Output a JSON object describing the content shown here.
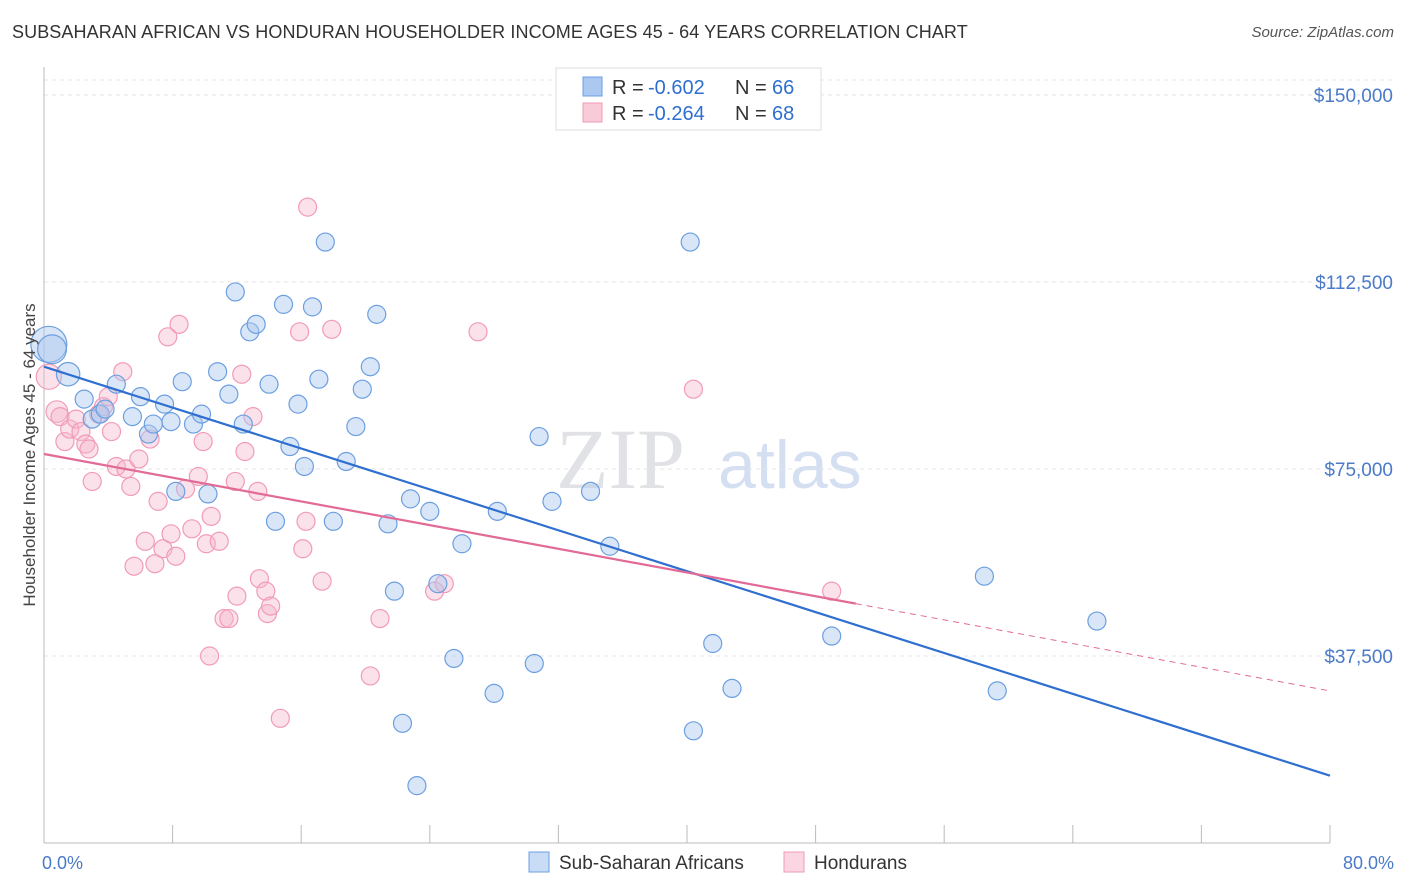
{
  "title": "SUBSAHARAN AFRICAN VS HONDURAN HOUSEHOLDER INCOME AGES 45 - 64 YEARS CORRELATION CHART",
  "source": "Source: ZipAtlas.com",
  "watermark": {
    "zip": "ZIP",
    "atlas": "atlas"
  },
  "legend_top": [
    {
      "r_label": "R =",
      "r_value": "-0.602",
      "n_label": "N =",
      "n_value": "66",
      "color": "#aac8f0"
    },
    {
      "r_label": "R =",
      "r_value": "-0.264",
      "n_label": "N =",
      "n_value": "68",
      "color": "#f6b6cb"
    }
  ],
  "chart_data": {
    "type": "scatter",
    "xlabel": "",
    "ylabel": "Householder Income Ages 45 - 64 years",
    "xlim": [
      0,
      80
    ],
    "ylim": [
      0,
      155000
    ],
    "x_tick_labels": [
      "0.0%",
      "80.0%"
    ],
    "y_ticks": [
      37500,
      75000,
      112500,
      150000
    ],
    "y_tick_labels": [
      "$37,500",
      "$75,000",
      "$112,500",
      "$150,000"
    ],
    "grid": true,
    "legend_position": "bottom",
    "series": [
      {
        "name": "Sub-Saharan Africans",
        "color": "#6c9fe0",
        "line_color": "#2f6fcf",
        "trend": {
          "x": [
            0,
            80
          ],
          "y": [
            95500,
            13500
          ]
        },
        "points": [
          {
            "x": 0.3,
            "y": 100000,
            "s": 2
          },
          {
            "x": 0.5,
            "y": 99000,
            "s": 1.6
          },
          {
            "x": 1.5,
            "y": 94000,
            "s": 1.3
          },
          {
            "x": 2.5,
            "y": 89000,
            "s": 1
          },
          {
            "x": 3.0,
            "y": 85000,
            "s": 1
          },
          {
            "x": 3.5,
            "y": 86000,
            "s": 1
          },
          {
            "x": 3.8,
            "y": 87000,
            "s": 1
          },
          {
            "x": 4.5,
            "y": 92000,
            "s": 1
          },
          {
            "x": 5.5,
            "y": 85500,
            "s": 1
          },
          {
            "x": 6.0,
            "y": 89500,
            "s": 1
          },
          {
            "x": 6.5,
            "y": 82000,
            "s": 1
          },
          {
            "x": 6.8,
            "y": 84000,
            "s": 1
          },
          {
            "x": 7.5,
            "y": 88000,
            "s": 1
          },
          {
            "x": 7.9,
            "y": 84500,
            "s": 1
          },
          {
            "x": 8.2,
            "y": 70500,
            "s": 1
          },
          {
            "x": 8.6,
            "y": 92500,
            "s": 1
          },
          {
            "x": 9.3,
            "y": 84000,
            "s": 1
          },
          {
            "x": 9.8,
            "y": 86000,
            "s": 1
          },
          {
            "x": 10.2,
            "y": 70000,
            "s": 1
          },
          {
            "x": 10.8,
            "y": 94500,
            "s": 1
          },
          {
            "x": 11.5,
            "y": 90000,
            "s": 1
          },
          {
            "x": 11.9,
            "y": 110500,
            "s": 1
          },
          {
            "x": 12.4,
            "y": 84000,
            "s": 1
          },
          {
            "x": 12.8,
            "y": 102500,
            "s": 1
          },
          {
            "x": 13.2,
            "y": 104000,
            "s": 1
          },
          {
            "x": 14.0,
            "y": 92000,
            "s": 1
          },
          {
            "x": 14.4,
            "y": 64500,
            "s": 1
          },
          {
            "x": 14.9,
            "y": 108000,
            "s": 1
          },
          {
            "x": 15.3,
            "y": 79500,
            "s": 1
          },
          {
            "x": 15.8,
            "y": 88000,
            "s": 1
          },
          {
            "x": 16.2,
            "y": 75500,
            "s": 1
          },
          {
            "x": 16.7,
            "y": 107500,
            "s": 1
          },
          {
            "x": 17.1,
            "y": 93000,
            "s": 1
          },
          {
            "x": 17.5,
            "y": 120500,
            "s": 1
          },
          {
            "x": 18.0,
            "y": 64500,
            "s": 1
          },
          {
            "x": 18.8,
            "y": 76500,
            "s": 1
          },
          {
            "x": 19.4,
            "y": 83500,
            "s": 1
          },
          {
            "x": 19.8,
            "y": 91000,
            "s": 1
          },
          {
            "x": 20.3,
            "y": 95500,
            "s": 1
          },
          {
            "x": 20.7,
            "y": 106000,
            "s": 1
          },
          {
            "x": 21.4,
            "y": 64000,
            "s": 1
          },
          {
            "x": 21.8,
            "y": 50500,
            "s": 1
          },
          {
            "x": 22.3,
            "y": 24000,
            "s": 1
          },
          {
            "x": 22.8,
            "y": 69000,
            "s": 1
          },
          {
            "x": 23.2,
            "y": 11500,
            "s": 1
          },
          {
            "x": 24.0,
            "y": 66500,
            "s": 1
          },
          {
            "x": 24.5,
            "y": 52000,
            "s": 1
          },
          {
            "x": 25.5,
            "y": 37000,
            "s": 1
          },
          {
            "x": 26.0,
            "y": 60000,
            "s": 1
          },
          {
            "x": 28.0,
            "y": 30000,
            "s": 1
          },
          {
            "x": 28.2,
            "y": 66500,
            "s": 1
          },
          {
            "x": 30.5,
            "y": 36000,
            "s": 1
          },
          {
            "x": 30.8,
            "y": 81500,
            "s": 1
          },
          {
            "x": 31.6,
            "y": 68500,
            "s": 1
          },
          {
            "x": 34.0,
            "y": 70500,
            "s": 1
          },
          {
            "x": 35.2,
            "y": 59500,
            "s": 1
          },
          {
            "x": 40.2,
            "y": 120500,
            "s": 1
          },
          {
            "x": 40.4,
            "y": 22500,
            "s": 1
          },
          {
            "x": 41.6,
            "y": 40000,
            "s": 1
          },
          {
            "x": 42.8,
            "y": 31000,
            "s": 1
          },
          {
            "x": 49.0,
            "y": 41500,
            "s": 1
          },
          {
            "x": 58.5,
            "y": 53500,
            "s": 1
          },
          {
            "x": 59.3,
            "y": 30500,
            "s": 1
          },
          {
            "x": 65.5,
            "y": 44500,
            "s": 1
          }
        ]
      },
      {
        "name": "Hondurans",
        "color": "#f29bb7",
        "line_color": "#e26a96",
        "trend": {
          "x": [
            0,
            50.5
          ],
          "y": [
            78000,
            48000
          ]
        },
        "trend_dashed": {
          "x": [
            50.5,
            80
          ],
          "y": [
            48000,
            30500
          ]
        },
        "points": [
          {
            "x": 0.3,
            "y": 93500,
            "s": 1.4
          },
          {
            "x": 0.8,
            "y": 86500,
            "s": 1.2
          },
          {
            "x": 1.0,
            "y": 85500,
            "s": 1
          },
          {
            "x": 1.3,
            "y": 80500,
            "s": 1
          },
          {
            "x": 1.6,
            "y": 83000,
            "s": 1
          },
          {
            "x": 2.0,
            "y": 85000,
            "s": 1
          },
          {
            "x": 2.3,
            "y": 82500,
            "s": 1
          },
          {
            "x": 2.6,
            "y": 80000,
            "s": 1
          },
          {
            "x": 2.8,
            "y": 79000,
            "s": 1
          },
          {
            "x": 3.0,
            "y": 72500,
            "s": 1
          },
          {
            "x": 3.4,
            "y": 86000,
            "s": 1
          },
          {
            "x": 3.7,
            "y": 87500,
            "s": 1
          },
          {
            "x": 4.0,
            "y": 89500,
            "s": 1
          },
          {
            "x": 4.2,
            "y": 82500,
            "s": 1
          },
          {
            "x": 4.5,
            "y": 75500,
            "s": 1
          },
          {
            "x": 4.9,
            "y": 94500,
            "s": 1
          },
          {
            "x": 5.1,
            "y": 75000,
            "s": 1
          },
          {
            "x": 5.4,
            "y": 71500,
            "s": 1
          },
          {
            "x": 5.6,
            "y": 55500,
            "s": 1
          },
          {
            "x": 5.9,
            "y": 77000,
            "s": 1
          },
          {
            "x": 6.3,
            "y": 60500,
            "s": 1
          },
          {
            "x": 6.6,
            "y": 81000,
            "s": 1
          },
          {
            "x": 6.9,
            "y": 56000,
            "s": 1
          },
          {
            "x": 7.1,
            "y": 68500,
            "s": 1
          },
          {
            "x": 7.4,
            "y": 59000,
            "s": 1
          },
          {
            "x": 7.7,
            "y": 101500,
            "s": 1
          },
          {
            "x": 7.9,
            "y": 62000,
            "s": 1
          },
          {
            "x": 8.2,
            "y": 57500,
            "s": 1
          },
          {
            "x": 8.4,
            "y": 104000,
            "s": 1
          },
          {
            "x": 8.8,
            "y": 71000,
            "s": 1
          },
          {
            "x": 9.2,
            "y": 63000,
            "s": 1
          },
          {
            "x": 9.6,
            "y": 73500,
            "s": 1
          },
          {
            "x": 9.9,
            "y": 80500,
            "s": 1
          },
          {
            "x": 10.1,
            "y": 60000,
            "s": 1
          },
          {
            "x": 10.4,
            "y": 65500,
            "s": 1
          },
          {
            "x": 10.3,
            "y": 37500,
            "s": 1
          },
          {
            "x": 10.9,
            "y": 60500,
            "s": 1
          },
          {
            "x": 11.2,
            "y": 45000,
            "s": 1
          },
          {
            "x": 11.5,
            "y": 45000,
            "s": 1
          },
          {
            "x": 11.9,
            "y": 72500,
            "s": 1
          },
          {
            "x": 12.0,
            "y": 49500,
            "s": 1
          },
          {
            "x": 12.3,
            "y": 94000,
            "s": 1
          },
          {
            "x": 12.5,
            "y": 78500,
            "s": 1
          },
          {
            "x": 13.0,
            "y": 85500,
            "s": 1
          },
          {
            "x": 13.3,
            "y": 70500,
            "s": 1
          },
          {
            "x": 13.4,
            "y": 53000,
            "s": 1
          },
          {
            "x": 13.8,
            "y": 50500,
            "s": 1
          },
          {
            "x": 13.9,
            "y": 46000,
            "s": 1
          },
          {
            "x": 14.1,
            "y": 47500,
            "s": 1
          },
          {
            "x": 14.7,
            "y": 25000,
            "s": 1
          },
          {
            "x": 15.9,
            "y": 102500,
            "s": 1
          },
          {
            "x": 16.1,
            "y": 59000,
            "s": 1
          },
          {
            "x": 16.4,
            "y": 127500,
            "s": 1
          },
          {
            "x": 16.3,
            "y": 64500,
            "s": 1
          },
          {
            "x": 17.3,
            "y": 52500,
            "s": 1
          },
          {
            "x": 17.9,
            "y": 103000,
            "s": 1
          },
          {
            "x": 20.3,
            "y": 33500,
            "s": 1
          },
          {
            "x": 20.9,
            "y": 45000,
            "s": 1
          },
          {
            "x": 24.3,
            "y": 50500,
            "s": 1
          },
          {
            "x": 24.9,
            "y": 52000,
            "s": 1
          },
          {
            "x": 27.0,
            "y": 102500,
            "s": 1
          },
          {
            "x": 40.4,
            "y": 91000,
            "s": 1
          },
          {
            "x": 49.0,
            "y": 50500,
            "s": 1
          }
        ]
      }
    ]
  }
}
